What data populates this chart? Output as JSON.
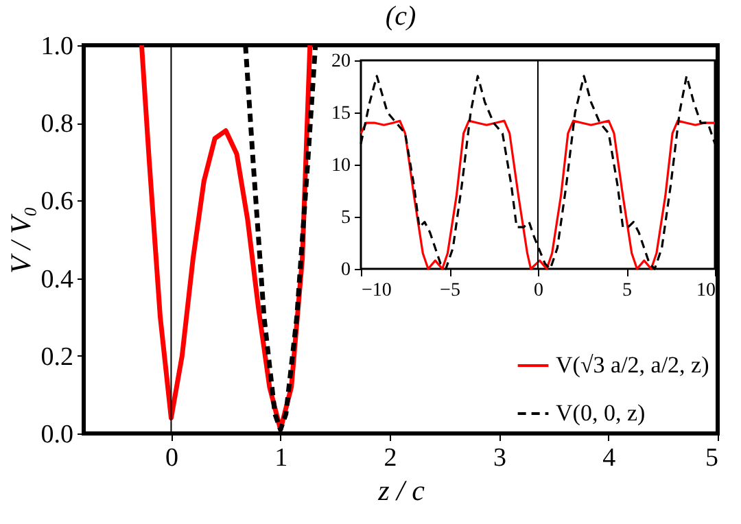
{
  "chart_data": [
    {
      "type": "line",
      "title": "(c)",
      "xlabel": "z / c",
      "ylabel": "V / V₀",
      "xlim": [
        -0.8,
        5
      ],
      "xticks": [
        0,
        1,
        2,
        3,
        4,
        5
      ],
      "ylim": [
        0,
        1
      ],
      "yticks": [
        {
          "value": 0,
          "label": "0.0"
        },
        0.2,
        0.4,
        0.6,
        0.8,
        {
          "value": 1,
          "label": "1.0"
        }
      ],
      "grid": false,
      "legend": "bottom right",
      "ref_lines": [
        {
          "axis": "x",
          "value": 0
        }
      ],
      "series": [
        {
          "name": "V(√3 a/2, a/2, z)",
          "color": "#ff0000",
          "line_style": "solid",
          "x": [
            -0.27,
            -0.2,
            -0.1,
            0,
            0.1,
            0.2,
            0.3,
            0.4,
            0.5,
            0.6,
            0.7,
            0.8,
            0.9,
            1.0,
            1.1,
            1.2,
            1.27
          ],
          "values": [
            1.0,
            0.7,
            0.3,
            0.04,
            0.2,
            0.45,
            0.65,
            0.76,
            0.78,
            0.72,
            0.55,
            0.32,
            0.12,
            0.01,
            0.12,
            0.45,
            1.0
          ]
        },
        {
          "name": "V(0, 0, z)",
          "color": "#000000",
          "line_style": "dashed",
          "x": [
            0.68,
            0.75,
            0.85,
            0.95,
            1.0,
            1.05,
            1.15,
            1.25,
            1.32
          ],
          "values": [
            1.0,
            0.7,
            0.3,
            0.05,
            0.01,
            0.05,
            0.3,
            0.7,
            1.0
          ]
        }
      ]
    },
    {
      "type": "line",
      "xlim": [
        -10,
        10
      ],
      "xticks": [
        -10,
        -5,
        0,
        5,
        10
      ],
      "ylim": [
        0,
        20
      ],
      "yticks": [
        0,
        5,
        10,
        15,
        20
      ],
      "grid": false,
      "ref_lines": [
        {
          "axis": "x",
          "value": 0
        }
      ],
      "series": [
        {
          "color": "#ff0000",
          "line_style": "solid",
          "x": [
            -10,
            -9.7,
            -9.2,
            -8.7,
            -8.2,
            -7.8,
            -7.5,
            -7.0,
            -6.5,
            -6.2,
            -5.8,
            -5.4,
            -5.1,
            -4.6,
            -4.2,
            -3.9,
            -3.4,
            -2.9,
            -2.4,
            -1.9,
            -1.6,
            -1.1,
            -0.6,
            -0.4,
            0.1,
            0.5,
            0.8,
            1.3,
            1.7,
            2.0,
            2.5,
            3.0,
            3.5,
            4.0,
            4.3,
            4.8,
            5.3,
            5.6,
            6.0,
            6.4,
            6.7,
            7.2,
            7.6,
            7.9,
            8.4,
            8.9,
            9.4,
            10
          ],
          "values": [
            13,
            14,
            14,
            13.8,
            14,
            14.2,
            13,
            7,
            1.5,
            0,
            0.8,
            0,
            1.5,
            7,
            13,
            14.2,
            14,
            13.8,
            14,
            14.2,
            13,
            7,
            1.5,
            0,
            0.8,
            0,
            1.5,
            7,
            13,
            14.2,
            14,
            13.8,
            14,
            14.2,
            13,
            7,
            1.5,
            0,
            0.8,
            0,
            1.5,
            7,
            13,
            14.2,
            14,
            13.8,
            14,
            14
          ]
        },
        {
          "color": "#000000",
          "line_style": "dashed",
          "x": [
            -10,
            -9.5,
            -9.1,
            -8.5,
            -8.0,
            -7.5,
            -7.0,
            -6.7,
            -6.4,
            -6.1,
            -5.5,
            -5.2,
            -4.8,
            -4.3,
            -3.8,
            -3.4,
            -3.0,
            -2.5,
            -2.0,
            -1.5,
            -1.2,
            -0.8,
            -0.5,
            -0.2,
            0.4,
            0.7,
            1.1,
            1.6,
            2.1,
            2.6,
            3.0,
            3.5,
            4.0,
            4.5,
            4.8,
            5.1,
            5.4,
            5.7,
            6.3,
            6.6,
            7.0,
            7.5,
            8.0,
            8.4,
            8.8,
            9.2,
            9.6,
            10
          ],
          "values": [
            12,
            16,
            18.5,
            15,
            14,
            13,
            8,
            4,
            4.5,
            3.5,
            0.5,
            0,
            2,
            8,
            15,
            18.5,
            16,
            14,
            13,
            8,
            4,
            4,
            4.5,
            3,
            0.5,
            0,
            2,
            8,
            15,
            18.5,
            16,
            14,
            13,
            8,
            4,
            4,
            4.5,
            3.5,
            0.5,
            0,
            2,
            8,
            15,
            18.5,
            16,
            14,
            14,
            12
          ]
        }
      ]
    }
  ]
}
